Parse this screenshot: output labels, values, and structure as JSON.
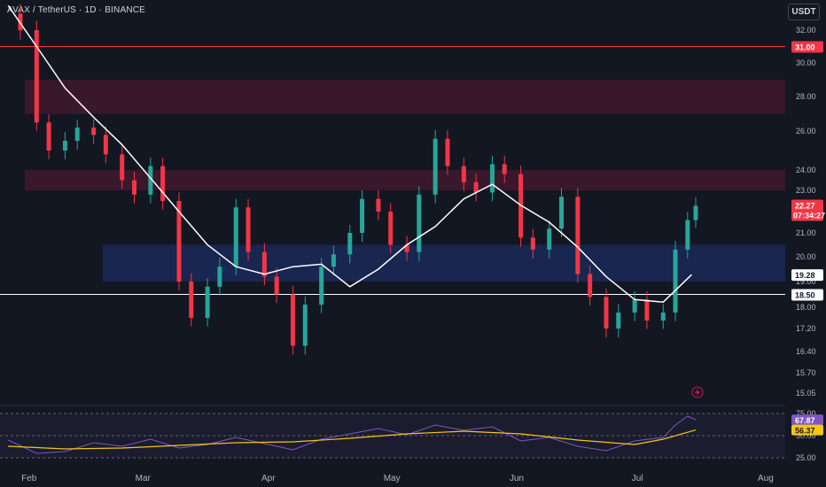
{
  "header": {
    "symbol": "AVAX / TetherUS · 1D · BINANCE",
    "currency": "USDT"
  },
  "colors": {
    "bull": "#26a69a",
    "bear": "#f23645",
    "ma": "#ffffff",
    "rsi": "#7e57c2",
    "rsi_ma": "#f5c518",
    "resistance_zone": "#6a1b3a",
    "support_zone": "#1e3a8a"
  },
  "chart_data": {
    "type": "candlestick",
    "price_axis": {
      "ticks": [
        32.0,
        30.0,
        28.0,
        26.0,
        24.0,
        23.0,
        21.0,
        20.0,
        19.0,
        18.0,
        17.2,
        16.4,
        15.7,
        15.05
      ]
    },
    "time_axis": {
      "labels": [
        "Feb",
        "Mar",
        "Apr",
        "May",
        "Jun",
        "Jul",
        "Aug"
      ]
    },
    "horizontal_lines": [
      {
        "price": 31.0,
        "label": "31.00",
        "color": "#f23645"
      },
      {
        "price": 18.5,
        "label": "18.50",
        "color": "#ffffff"
      }
    ],
    "zones": [
      {
        "from": 27.0,
        "to": 29.0,
        "kind": "resistance"
      },
      {
        "from": 23.0,
        "to": 24.0,
        "kind": "resistance"
      },
      {
        "from": 19.0,
        "to": 20.5,
        "kind": "support"
      }
    ],
    "ma_last": {
      "value": "19.28"
    },
    "last_price": {
      "value": "22.27",
      "countdown": "07:34:27"
    },
    "ma_path": [
      [
        "2025-01-27",
        33.5
      ],
      [
        "2025-02-03",
        31.0
      ],
      [
        "2025-02-10",
        28.5
      ],
      [
        "2025-02-17",
        26.8
      ],
      [
        "2025-02-24",
        25.3
      ],
      [
        "2025-03-03",
        23.6
      ],
      [
        "2025-03-10",
        22.0
      ],
      [
        "2025-03-17",
        20.5
      ],
      [
        "2025-03-24",
        19.6
      ],
      [
        "2025-03-31",
        19.3
      ],
      [
        "2025-04-07",
        19.6
      ],
      [
        "2025-04-14",
        19.7
      ],
      [
        "2025-04-21",
        18.8
      ],
      [
        "2025-04-28",
        19.5
      ],
      [
        "2025-05-05",
        20.5
      ],
      [
        "2025-05-12",
        21.3
      ],
      [
        "2025-05-19",
        22.6
      ],
      [
        "2025-05-26",
        23.3
      ],
      [
        "2025-06-02",
        22.3
      ],
      [
        "2025-06-09",
        21.5
      ],
      [
        "2025-06-16",
        20.4
      ],
      [
        "2025-06-23",
        19.2
      ],
      [
        "2025-06-30",
        18.3
      ],
      [
        "2025-07-07",
        18.2
      ],
      [
        "2025-07-14",
        19.28
      ]
    ],
    "closes": [
      [
        "2025-01-27",
        33.0
      ],
      [
        "2025-01-30",
        32.0
      ],
      [
        "2025-02-03",
        26.5
      ],
      [
        "2025-02-06",
        25.0
      ],
      [
        "2025-02-10",
        25.5
      ],
      [
        "2025-02-13",
        26.2
      ],
      [
        "2025-02-17",
        25.8
      ],
      [
        "2025-02-20",
        24.8
      ],
      [
        "2025-02-24",
        23.5
      ],
      [
        "2025-02-27",
        22.8
      ],
      [
        "2025-03-03",
        24.2
      ],
      [
        "2025-03-06",
        22.5
      ],
      [
        "2025-03-10",
        19.0
      ],
      [
        "2025-03-13",
        17.6
      ],
      [
        "2025-03-17",
        18.8
      ],
      [
        "2025-03-20",
        19.6
      ],
      [
        "2025-03-24",
        22.2
      ],
      [
        "2025-03-27",
        20.2
      ],
      [
        "2025-03-31",
        19.2
      ],
      [
        "2025-04-03",
        18.5
      ],
      [
        "2025-04-07",
        16.6
      ],
      [
        "2025-04-10",
        18.1
      ],
      [
        "2025-04-14",
        19.6
      ],
      [
        "2025-04-17",
        20.1
      ],
      [
        "2025-04-21",
        21.0
      ],
      [
        "2025-04-24",
        22.6
      ],
      [
        "2025-04-28",
        22.0
      ],
      [
        "2025-05-01",
        20.5
      ],
      [
        "2025-05-05",
        20.2
      ],
      [
        "2025-05-08",
        22.8
      ],
      [
        "2025-05-12",
        25.6
      ],
      [
        "2025-05-15",
        24.2
      ],
      [
        "2025-05-19",
        23.4
      ],
      [
        "2025-05-22",
        22.9
      ],
      [
        "2025-05-26",
        24.3
      ],
      [
        "2025-05-29",
        23.8
      ],
      [
        "2025-06-02",
        20.8
      ],
      [
        "2025-06-05",
        20.3
      ],
      [
        "2025-06-09",
        21.2
      ],
      [
        "2025-06-12",
        22.7
      ],
      [
        "2025-06-16",
        19.3
      ],
      [
        "2025-06-19",
        18.4
      ],
      [
        "2025-06-23",
        17.2
      ],
      [
        "2025-06-26",
        17.8
      ],
      [
        "2025-06-30",
        18.3
      ],
      [
        "2025-07-03",
        17.5
      ],
      [
        "2025-07-07",
        17.8
      ],
      [
        "2025-07-10",
        20.3
      ],
      [
        "2025-07-13",
        21.6
      ],
      [
        "2025-07-15",
        22.27
      ]
    ],
    "rsi": {
      "levels": {
        "top": "75.00",
        "mid": "50.00",
        "bottom": "25.00"
      },
      "rsi_value": "67.87",
      "ma_value": "56.37",
      "rsi_path": [
        [
          "2025-01-27",
          45
        ],
        [
          "2025-02-03",
          30
        ],
        [
          "2025-02-10",
          32
        ],
        [
          "2025-02-17",
          42
        ],
        [
          "2025-02-24",
          38
        ],
        [
          "2025-03-03",
          46
        ],
        [
          "2025-03-10",
          36
        ],
        [
          "2025-03-17",
          40
        ],
        [
          "2025-03-24",
          48
        ],
        [
          "2025-03-31",
          41
        ],
        [
          "2025-04-07",
          34
        ],
        [
          "2025-04-14",
          46
        ],
        [
          "2025-04-21",
          52
        ],
        [
          "2025-04-28",
          58
        ],
        [
          "2025-05-05",
          51
        ],
        [
          "2025-05-12",
          62
        ],
        [
          "2025-05-19",
          56
        ],
        [
          "2025-05-26",
          60
        ],
        [
          "2025-06-02",
          44
        ],
        [
          "2025-06-09",
          48
        ],
        [
          "2025-06-16",
          38
        ],
        [
          "2025-06-23",
          33
        ],
        [
          "2025-06-30",
          44
        ],
        [
          "2025-07-07",
          48
        ],
        [
          "2025-07-10",
          62
        ],
        [
          "2025-07-13",
          72
        ],
        [
          "2025-07-15",
          67.87
        ]
      ],
      "ma_path": [
        [
          "2025-01-27",
          38
        ],
        [
          "2025-02-10",
          35
        ],
        [
          "2025-02-24",
          36
        ],
        [
          "2025-03-10",
          39
        ],
        [
          "2025-03-24",
          42
        ],
        [
          "2025-04-07",
          43
        ],
        [
          "2025-04-21",
          47
        ],
        [
          "2025-05-05",
          52
        ],
        [
          "2025-05-19",
          55
        ],
        [
          "2025-06-02",
          52
        ],
        [
          "2025-06-16",
          45
        ],
        [
          "2025-06-30",
          40
        ],
        [
          "2025-07-07",
          46
        ],
        [
          "2025-07-15",
          56.37
        ]
      ]
    }
  }
}
